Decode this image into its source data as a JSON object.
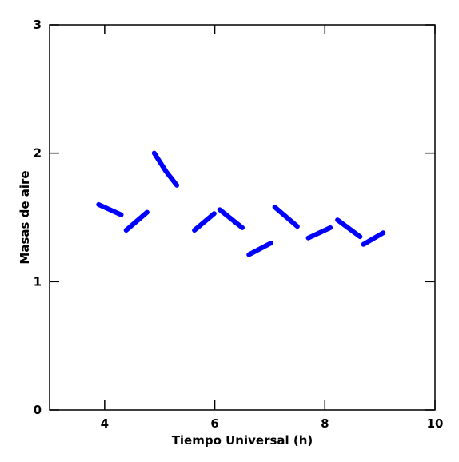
{
  "chart_data": {
    "type": "line",
    "xlabel": "Tiempo Universal (h)",
    "ylabel": "Masas de aire",
    "x": [
      3.89,
      4.3,
      null,
      4.39,
      4.77,
      null,
      4.9,
      5.11,
      5.31,
      null,
      5.63,
      5.99,
      null,
      6.09,
      6.5,
      null,
      6.62,
      7.02,
      null,
      7.09,
      7.5,
      null,
      7.7,
      8.1,
      null,
      8.23,
      8.64,
      null,
      8.7,
      9.06
    ],
    "series": [
      {
        "color": "#0000ff",
        "values": [
          1.6,
          1.52,
          null,
          1.4,
          1.54,
          null,
          2.0,
          1.86,
          1.75,
          null,
          1.4,
          1.53,
          null,
          1.56,
          1.42,
          null,
          1.21,
          1.3,
          null,
          1.58,
          1.43,
          null,
          1.34,
          1.42,
          null,
          1.48,
          1.35,
          null,
          1.29,
          1.38
        ]
      }
    ],
    "xlim": [
      3,
      10
    ],
    "ylim": [
      0,
      3
    ],
    "xticks": [
      4,
      6,
      8,
      10
    ],
    "yticks": [
      0,
      1,
      2,
      3
    ]
  }
}
